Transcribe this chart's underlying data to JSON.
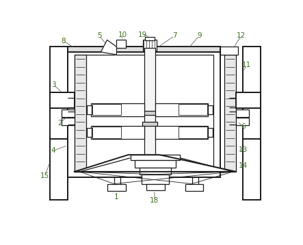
{
  "fig_width": 4.43,
  "fig_height": 3.58,
  "dpi": 100,
  "bg_color": "#ffffff",
  "line_color": "#1a1a1a",
  "label_color": "#3a7020",
  "lw_thick": 1.4,
  "lw_med": 0.9,
  "lw_thin": 0.6,
  "font_size": 7.5
}
